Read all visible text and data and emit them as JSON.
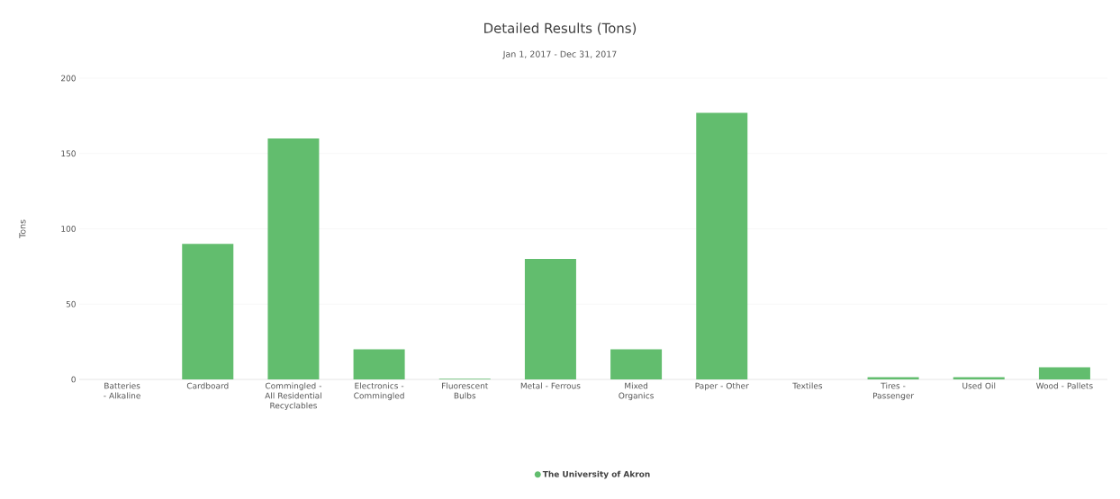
{
  "chart_data": {
    "type": "bar",
    "title": "Detailed Results (Tons)",
    "subtitle": "Jan 1, 2017 - Dec 31, 2017",
    "ylabel": "Tons",
    "categories": [
      "Batteries - Alkaline",
      "Cardboard",
      "Commingled - All Residential Recyclables",
      "Electronics - Commingled",
      "Fluorescent Bulbs",
      "Metal - Ferrous",
      "Mixed Organics",
      "Paper - Other",
      "Textiles",
      "Tires - Passenger",
      "Used Oil",
      "Wood - Pallets"
    ],
    "series": [
      {
        "name": "The University of Akron",
        "color": "#62bd6e",
        "values": [
          0,
          90,
          160,
          20,
          0.5,
          80,
          20,
          177,
          0,
          1.5,
          1.5,
          8
        ]
      }
    ],
    "ylim": [
      0,
      200
    ],
    "yticks": [
      0,
      50,
      100,
      150,
      200
    ],
    "grid": "y",
    "legend": "bottom"
  }
}
